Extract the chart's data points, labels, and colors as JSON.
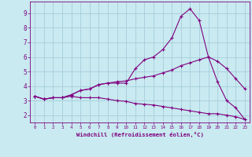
{
  "xlabel": "Windchill (Refroidissement éolien,°C)",
  "x": [
    0,
    1,
    2,
    3,
    4,
    5,
    6,
    7,
    8,
    9,
    10,
    11,
    12,
    13,
    14,
    15,
    16,
    17,
    18,
    19,
    20,
    21,
    22,
    23
  ],
  "line1": [
    3.3,
    3.1,
    3.2,
    3.2,
    3.4,
    3.7,
    3.8,
    4.1,
    4.2,
    4.2,
    4.2,
    5.2,
    5.8,
    6.0,
    6.5,
    7.3,
    8.8,
    9.3,
    8.5,
    6.0,
    4.3,
    3.0,
    2.5,
    1.7
  ],
  "line2": [
    3.3,
    3.1,
    3.2,
    3.2,
    3.4,
    3.7,
    3.8,
    4.1,
    4.2,
    4.3,
    4.35,
    4.5,
    4.6,
    4.7,
    4.9,
    5.1,
    5.4,
    5.6,
    5.8,
    6.0,
    5.7,
    5.2,
    4.5,
    3.8
  ],
  "line3": [
    3.3,
    3.1,
    3.2,
    3.2,
    3.3,
    3.2,
    3.2,
    3.2,
    3.1,
    3.0,
    2.95,
    2.8,
    2.75,
    2.7,
    2.6,
    2.5,
    2.4,
    2.3,
    2.2,
    2.1,
    2.1,
    2.0,
    1.9,
    1.7
  ],
  "line_color": "#800080",
  "bg_color": "#c8eaf0",
  "grid_color": "#a0c8d8",
  "marker": "+",
  "ylim": [
    1.5,
    9.8
  ],
  "xlim": [
    -0.5,
    23.5
  ],
  "yticks": [
    2,
    3,
    4,
    5,
    6,
    7,
    8,
    9
  ],
  "xticks": [
    0,
    1,
    2,
    3,
    4,
    5,
    6,
    7,
    8,
    9,
    10,
    11,
    12,
    13,
    14,
    15,
    16,
    17,
    18,
    19,
    20,
    21,
    22,
    23
  ]
}
